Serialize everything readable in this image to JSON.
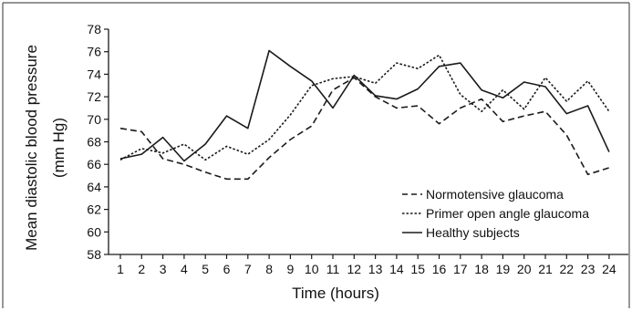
{
  "chart_data": {
    "type": "line",
    "title": "",
    "xlabel": "Time (hours)",
    "ylabel": "Mean diastolic blood pressure (mm Hg)",
    "ylabel_lines": [
      "Mean diastolic blood pressure",
      "(mm Hg)"
    ],
    "x": [
      1,
      2,
      3,
      4,
      5,
      6,
      7,
      8,
      9,
      10,
      11,
      12,
      13,
      14,
      15,
      16,
      17,
      18,
      19,
      20,
      21,
      22,
      23,
      24
    ],
    "x_ticks": [
      "1",
      "2",
      "3",
      "4",
      "5",
      "6",
      "7",
      "8",
      "9",
      "10",
      "11",
      "12",
      "13",
      "14",
      "15",
      "16",
      "17",
      "18",
      "19",
      "20",
      "21",
      "22",
      "23",
      "24"
    ],
    "ylim": [
      58,
      78
    ],
    "y_ticks": [
      "58",
      "60",
      "62",
      "64",
      "66",
      "68",
      "70",
      "72",
      "74",
      "76",
      "78"
    ],
    "grid": false,
    "legend_position": "lower-right",
    "series": [
      {
        "name": "Normotensive glaucoma",
        "style": "dashed",
        "values": [
          69.2,
          68.9,
          66.5,
          66.0,
          65.3,
          64.7,
          64.7,
          66.6,
          68.2,
          69.4,
          72.6,
          73.7,
          72.0,
          71.0,
          71.2,
          69.6,
          71.0,
          71.8,
          69.8,
          70.3,
          70.7,
          68.6,
          65.1,
          65.7
        ]
      },
      {
        "name": "Primer open angle glaucoma",
        "style": "dotted",
        "values": [
          66.4,
          67.4,
          67.0,
          67.8,
          66.4,
          67.6,
          66.9,
          68.2,
          70.4,
          73.0,
          73.6,
          73.8,
          73.2,
          75.0,
          74.5,
          75.7,
          72.2,
          70.7,
          72.6,
          70.9,
          73.7,
          71.6,
          73.4,
          70.7
        ]
      },
      {
        "name": "Healthy subjects",
        "style": "solid",
        "values": [
          66.5,
          66.9,
          68.4,
          66.3,
          67.8,
          70.3,
          69.2,
          76.1,
          74.7,
          73.4,
          71.0,
          73.9,
          72.1,
          71.8,
          72.7,
          74.7,
          75.0,
          72.6,
          71.9,
          73.3,
          72.9,
          70.5,
          71.2,
          67.1
        ]
      }
    ]
  },
  "colors": {
    "line": "#1a1a1a",
    "frame": "#555555",
    "background": "#ffffff"
  }
}
